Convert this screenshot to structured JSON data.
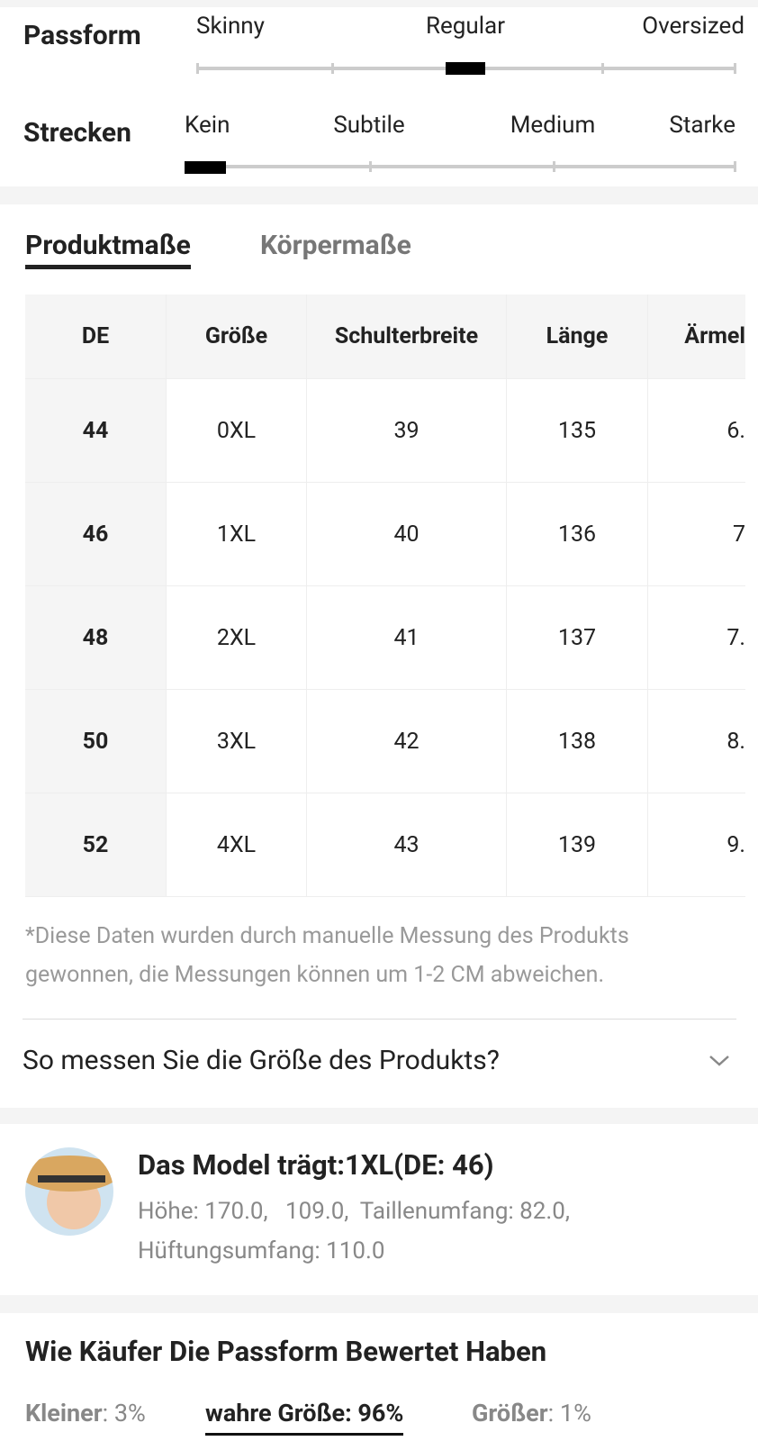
{
  "fit": {
    "passform": {
      "label": "Passform",
      "options": [
        "Skinny",
        "Regular",
        "Oversized"
      ]
    },
    "strecken": {
      "label": "Strecken",
      "options": [
        "Kein",
        "Subtile",
        "Medium",
        "Starke"
      ]
    }
  },
  "tabs": [
    "Produktmaße",
    "Körpermaße"
  ],
  "table": {
    "headers": [
      "DE",
      "Größe",
      "Schulterbreite",
      "Länge",
      "Ärmel"
    ],
    "rows": [
      [
        "44",
        "0XL",
        "39",
        "135",
        "6."
      ],
      [
        "46",
        "1XL",
        "40",
        "136",
        "7"
      ],
      [
        "48",
        "2XL",
        "41",
        "137",
        "7."
      ],
      [
        "50",
        "3XL",
        "42",
        "138",
        "8."
      ],
      [
        "52",
        "4XL",
        "43",
        "139",
        "9."
      ]
    ]
  },
  "note": "*Diese Daten wurden durch manuelle Messung des Produkts gewonnen, die Messungen können um 1-2 CM abweichen.",
  "how_to_measure": "So messen Sie die Größe des Produkts?",
  "model": {
    "title": "Das Model trägt:1XL(DE: 46)",
    "details": "Höhe: 170.0,   109.0,  Taillenumfang: 82.0, Hüftungsumfang: 110.0"
  },
  "ratings": {
    "title": "Wie Käufer Die Passform Bewertet Haben",
    "items": [
      {
        "label": "Kleiner",
        "value": ": 3%"
      },
      {
        "label": "wahre Größe",
        "value": ": 96%"
      },
      {
        "label": "Größer",
        "value": ": 1%"
      }
    ]
  }
}
